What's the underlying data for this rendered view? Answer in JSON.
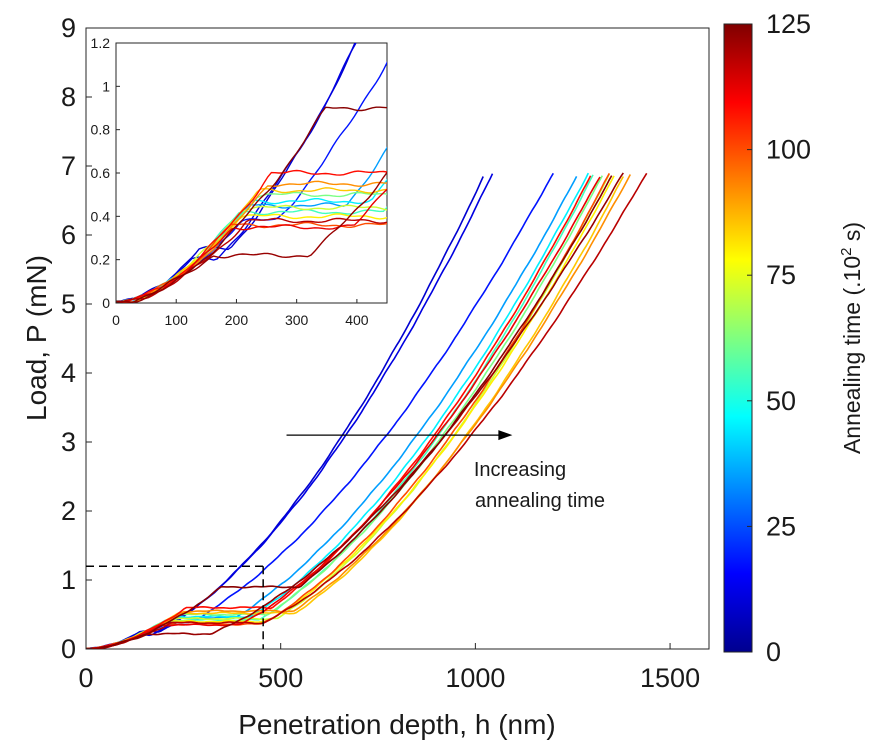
{
  "chart_data": {
    "type": "line",
    "xlabel": "Penetration depth, h (nm)",
    "ylabel": "Load, P (mN)",
    "xlim": [
      0,
      1600
    ],
    "ylim": [
      0,
      9
    ],
    "xticks": [
      "0",
      "500",
      "1000",
      "1500"
    ],
    "yticks": [
      "0",
      "1",
      "2",
      "3",
      "4",
      "5",
      "6",
      "7",
      "8",
      "9"
    ],
    "grid": false,
    "colorbar": {
      "label": "Annealing time (.10",
      "label_sup": "2",
      "label_end": " s)",
      "range": [
        0,
        125
      ],
      "ticks": [
        "0",
        "25",
        "50",
        "75",
        "100",
        "125"
      ],
      "colormap": "jet"
    },
    "annotation": {
      "line1": "Increasing",
      "line2": "annealing time",
      "arrow_from": [
        515,
        3.1
      ],
      "arrow_to": [
        1095,
        3.1
      ]
    },
    "zoom_box": {
      "x": 455,
      "y": 1.2
    },
    "series": [
      {
        "t": 10,
        "h_max": 1025,
        "pop_in": [
          0.25,
          50
        ]
      },
      {
        "t": 12,
        "h_max": 1045,
        "pop_in": [
          0.2,
          40
        ]
      },
      {
        "t": 18,
        "h_max": 1200,
        "pop_in": [
          0.38,
          60
        ]
      },
      {
        "t": 35,
        "h_max": 1265,
        "pop_in": [
          0.45,
          160
        ]
      },
      {
        "t": 45,
        "h_max": 1290,
        "pop_in": [
          0.47,
          200
        ]
      },
      {
        "t": 55,
        "h_max": 1305,
        "pop_in": [
          0.42,
          240
        ]
      },
      {
        "t": 62,
        "h_max": 1330,
        "pop_in": [
          0.5,
          230
        ]
      },
      {
        "t": 72,
        "h_max": 1345,
        "pop_in": [
          0.44,
          280
        ]
      },
      {
        "t": 80,
        "h_max": 1360,
        "pop_in": [
          0.4,
          260
        ]
      },
      {
        "t": 85,
        "h_max": 1385,
        "pop_in": [
          0.52,
          300
        ]
      },
      {
        "t": 92,
        "h_max": 1400,
        "pop_in": [
          0.55,
          280
        ]
      },
      {
        "t": 100,
        "h_max": 1345,
        "pop_in": [
          0.36,
          260
        ]
      },
      {
        "t": 108,
        "h_max": 1300,
        "pop_in": [
          0.6,
          220
        ]
      },
      {
        "t": 112,
        "h_max": 1325,
        "pop_in": [
          0.35,
          200
        ]
      },
      {
        "t": 118,
        "h_max": 1440,
        "pop_in": [
          0.38,
          240
        ]
      },
      {
        "t": 122,
        "h_max": 1380,
        "pop_in": [
          0.22,
          160
        ]
      },
      {
        "t": 124,
        "h_max": 1355,
        "pop_in": [
          0.9,
          200
        ]
      }
    ],
    "inset": {
      "xlim": [
        0,
        450
      ],
      "ylim": [
        0,
        1.2
      ],
      "xticks": [
        "0",
        "100",
        "200",
        "300",
        "400"
      ],
      "yticks": [
        "0",
        "0.2",
        "0.4",
        "0.6",
        "0.8",
        "1",
        "1.2"
      ]
    }
  }
}
